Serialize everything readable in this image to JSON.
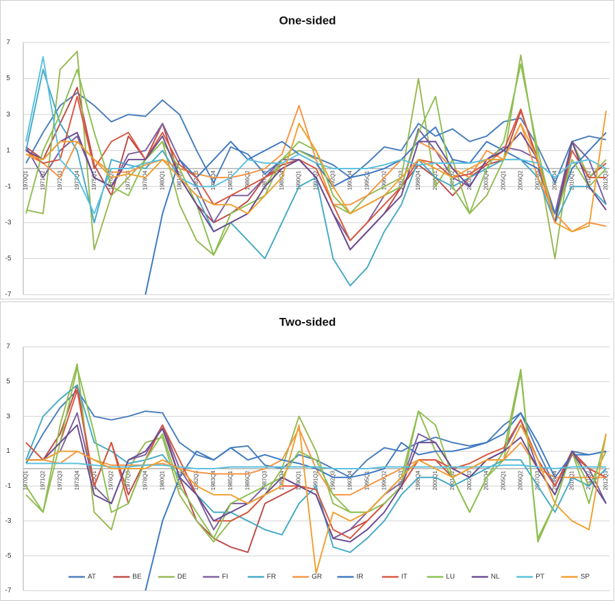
{
  "chart_data": [
    {
      "type": "line",
      "title": "One-sided",
      "grid": true,
      "ylim": [
        -7,
        7
      ],
      "yticks": [
        -7,
        -5,
        -3,
        -1,
        1,
        3,
        5,
        7
      ],
      "categories": [
        "1970Q1",
        "1971Q2",
        "1972Q3",
        "1973Q4",
        "1975Q1",
        "1976Q2",
        "1977Q3",
        "1978Q4",
        "1980Q1",
        "1981Q2",
        "1982Q3",
        "1983Q4",
        "1985Q1",
        "1986Q2",
        "1987Q3",
        "1988Q4",
        "1990Q1",
        "1991Q2",
        "1992Q3",
        "1993Q4",
        "1995Q1",
        "1996Q2",
        "1997Q3",
        "1998Q4",
        "2000Q1",
        "2001Q2",
        "2002Q3",
        "2003Q4",
        "2005Q1",
        "2006Q2",
        "2007Q3",
        "2008Q4",
        "2010Q1",
        "2011Q2",
        "2012Q3"
      ],
      "series": [
        {
          "color": "#4a7ebb",
          "values": [
            0.3,
            2.0,
            3.5,
            4.2,
            3.5,
            2.6,
            3.0,
            2.9,
            3.8,
            3.0,
            1.0,
            -0.8,
            1.2,
            0.8,
            -0.3,
            0.5,
            1.0,
            0.6,
            0.2,
            -0.5,
            0.3,
            1.2,
            1.0,
            2.5,
            1.8,
            2.2,
            1.5,
            1.8,
            2.6,
            2.8,
            1.2,
            -0.8,
            1.5,
            1.8,
            1.6
          ]
        },
        {
          "color": "#be4b48",
          "values": [
            1.2,
            0.5,
            2.5,
            4.5,
            0.2,
            -1.5,
            1.8,
            0.5,
            2.5,
            -0.5,
            -2.0,
            -3.0,
            -2.5,
            -1.8,
            -0.5,
            0.2,
            0.5,
            -0.5,
            -2.5,
            -4.5,
            -3.5,
            -2.5,
            -1.0,
            0.2,
            -0.5,
            -1.5,
            -0.5,
            0.2,
            0.5,
            3.2,
            0.5,
            -3.0,
            1.5,
            -0.5,
            0.3
          ]
        },
        {
          "color": "#98b954",
          "values": [
            -2.3,
            -2.5,
            5.5,
            6.5,
            -4.5,
            -1.5,
            -0.5,
            0.5,
            1.5,
            -2.0,
            -4.0,
            -4.8,
            -3.0,
            -2.5,
            -1.0,
            0.5,
            1.0,
            0.5,
            -2.0,
            -2.5,
            -1.5,
            -1.0,
            -0.5,
            5.0,
            -1.0,
            0.5,
            -2.5,
            -1.5,
            0.5,
            6.3,
            0.5,
            -5.0,
            1.5,
            -0.5,
            0.5
          ]
        },
        {
          "color": "#7d60a0",
          "values": [
            1.2,
            -0.5,
            1.0,
            1.8,
            -0.5,
            -1.0,
            0.8,
            1.0,
            2.5,
            0.5,
            -1.0,
            -3.0,
            -1.5,
            -1.5,
            -0.5,
            0.5,
            0.5,
            -0.5,
            -2.5,
            -4.0,
            -3.0,
            -1.5,
            -1.0,
            2.2,
            1.0,
            -0.5,
            -1.0,
            0.5,
            1.2,
            1.0,
            0.5,
            -2.5,
            1.5,
            0.5,
            -2.0
          ]
        },
        {
          "color": "#46aac5",
          "values": [
            1.0,
            5.5,
            2.5,
            1.0,
            -3.0,
            0.5,
            0.2,
            0.0,
            1.0,
            -0.5,
            -1.5,
            -3.5,
            -3.0,
            -4.0,
            -5.0,
            -3.0,
            -1.0,
            -0.5,
            -5.0,
            -6.5,
            -5.5,
            -3.5,
            -2.0,
            0.5,
            -0.5,
            -1.0,
            -0.5,
            0.0,
            0.5,
            0.5,
            -0.5,
            -3.0,
            -1.0,
            -1.0,
            -2.0
          ]
        },
        {
          "color": "#f69544",
          "values": [
            0.8,
            0.3,
            -0.5,
            1.5,
            0.5,
            -0.2,
            -0.2,
            0.2,
            0.5,
            0.0,
            -0.3,
            -0.5,
            -0.5,
            -0.3,
            0.0,
            0.8,
            3.5,
            0.5,
            -2.0,
            -2.0,
            -1.5,
            -0.5,
            0.5,
            1.5,
            1.0,
            0.0,
            -0.5,
            1.0,
            0.5,
            2.5,
            -0.5,
            -2.5,
            -3.5,
            -3.0,
            -3.2
          ]
        },
        {
          "color": "#3c78c3",
          "values": [
            null,
            null,
            null,
            null,
            null,
            null,
            null,
            -7.0,
            -2.5,
            0.5,
            -0.5,
            0.5,
            1.5,
            0.5,
            1.0,
            1.5,
            0.8,
            0.3,
            -1.0,
            -0.5,
            -0.3,
            0.0,
            0.5,
            1.5,
            2.3,
            0.5,
            0.3,
            1.5,
            1.0,
            0.5,
            0.0,
            -2.5,
            0.0,
            1.0,
            2.0
          ]
        },
        {
          "color": "#d8573f",
          "values": [
            1.0,
            0.3,
            0.5,
            4.0,
            0.0,
            1.5,
            2.0,
            0.5,
            2.0,
            0.2,
            -0.5,
            -2.0,
            -1.5,
            -1.0,
            -0.5,
            0.0,
            0.5,
            0.0,
            -2.0,
            -4.0,
            -3.0,
            -2.0,
            -1.0,
            0.5,
            0.3,
            -0.5,
            -0.3,
            0.3,
            1.0,
            3.3,
            0.3,
            -3.0,
            1.0,
            -0.5,
            -0.5
          ]
        },
        {
          "color": "#8cc152",
          "values": [
            -2.5,
            1.0,
            3.0,
            5.5,
            2.0,
            -1.0,
            -1.5,
            0.5,
            1.5,
            0.0,
            -2.0,
            -4.8,
            -2.5,
            -2.0,
            -1.5,
            0.5,
            1.5,
            1.0,
            -1.5,
            -2.5,
            -2.0,
            -1.5,
            -1.0,
            2.0,
            4.0,
            -1.0,
            -2.5,
            0.0,
            1.5,
            5.8,
            1.0,
            -3.0,
            0.5,
            -1.0,
            0.0
          ]
        },
        {
          "color": "#6a4c93",
          "values": [
            1.0,
            0.5,
            1.5,
            2.0,
            -0.5,
            -1.0,
            0.5,
            0.5,
            1.8,
            -0.5,
            -2.0,
            -3.5,
            -3.0,
            -2.5,
            -1.0,
            0.0,
            0.5,
            -0.5,
            -2.5,
            -4.5,
            -3.5,
            -2.5,
            -1.5,
            1.5,
            1.5,
            0.0,
            -1.0,
            0.5,
            1.0,
            2.0,
            0.5,
            -3.0,
            1.5,
            -1.0,
            -2.3
          ]
        },
        {
          "color": "#5bc0de",
          "values": [
            1.5,
            6.2,
            0.5,
            -0.5,
            -2.5,
            0.0,
            0.0,
            0.3,
            0.5,
            -0.5,
            -1.0,
            -1.0,
            -0.5,
            0.5,
            0.3,
            0.3,
            0.8,
            0.3,
            0.0,
            0.0,
            0.0,
            0.2,
            0.5,
            0.2,
            0.3,
            0.3,
            0.3,
            0.5,
            0.5,
            0.5,
            0.3,
            -0.5,
            0.3,
            0.5,
            0.0
          ]
        },
        {
          "color": "#f0a030",
          "values": [
            0.8,
            0.5,
            1.5,
            1.5,
            0.5,
            -0.5,
            -0.3,
            -0.5,
            0.5,
            -0.5,
            -1.5,
            -2.0,
            -2.0,
            -2.5,
            -1.5,
            -0.5,
            2.5,
            1.0,
            -1.0,
            -2.5,
            -2.0,
            -1.5,
            -0.5,
            0.5,
            0.0,
            -0.5,
            0.0,
            0.5,
            0.5,
            2.5,
            0.5,
            -3.0,
            -3.5,
            -3.2,
            3.2
          ]
        }
      ]
    },
    {
      "type": "line",
      "title": "Two-sided",
      "grid": true,
      "legend": "bottom",
      "ylim": [
        -7,
        7
      ],
      "yticks": [
        -7,
        -5,
        -3,
        -1,
        1,
        3,
        5,
        7
      ],
      "categories": [
        "1970Q1",
        "1971Q2",
        "1972Q3",
        "1973Q4",
        "1975Q1",
        "1976Q2",
        "1977Q3",
        "1978Q4",
        "1980Q1",
        "1981Q2",
        "1982Q3",
        "1983Q4",
        "1985Q1",
        "1986Q2",
        "1987Q3",
        "1988Q4",
        "1990Q1",
        "1991Q2",
        "1992Q3",
        "1993Q4",
        "1995Q1",
        "1996Q2",
        "1997Q3",
        "1998Q4",
        "2000Q1",
        "2001Q2",
        "2002Q3",
        "2003Q4",
        "2005Q1",
        "2006Q2",
        "2007Q3",
        "2008Q4",
        "2010Q1",
        "2011Q2",
        "2012Q3"
      ],
      "series": [
        {
          "name": "AT",
          "color": "#4a7ebb",
          "values": [
            0.3,
            2.0,
            3.5,
            4.5,
            3.0,
            2.8,
            3.0,
            3.3,
            3.2,
            1.5,
            0.8,
            0.5,
            1.2,
            1.3,
            0.2,
            0.0,
            0.8,
            0.5,
            0.0,
            -0.5,
            0.5,
            1.2,
            1.0,
            1.5,
            1.8,
            1.5,
            1.3,
            1.5,
            2.5,
            3.2,
            1.0,
            -1.0,
            1.0,
            0.8,
            1.0
          ]
        },
        {
          "name": "BE",
          "color": "#be4b48",
          "values": [
            1.5,
            0.5,
            2.0,
            4.8,
            -1.0,
            1.5,
            -1.5,
            0.5,
            2.5,
            -0.5,
            -3.0,
            -4.0,
            -4.5,
            -4.8,
            -2.0,
            -1.5,
            -1.0,
            -1.5,
            -4.0,
            -3.5,
            -3.0,
            -2.0,
            -1.0,
            0.5,
            0.5,
            -0.5,
            0.0,
            0.5,
            1.0,
            2.8,
            0.5,
            -1.0,
            1.0,
            0.0,
            -0.5
          ]
        },
        {
          "name": "DE",
          "color": "#98b954",
          "values": [
            -1.5,
            -2.5,
            2.5,
            6.0,
            -2.5,
            -3.5,
            0.0,
            1.5,
            1.8,
            -1.5,
            -3.0,
            -4.2,
            -3.0,
            -2.5,
            -1.5,
            0.0,
            3.0,
            1.0,
            -2.0,
            -2.5,
            -2.5,
            -1.5,
            -0.5,
            3.3,
            1.0,
            -0.5,
            -2.5,
            -0.5,
            1.0,
            5.7,
            -4.2,
            -2.0,
            1.0,
            -1.0,
            1.0
          ]
        },
        {
          "name": "FI",
          "color": "#7d60a0",
          "values": [
            0.5,
            0.5,
            1.0,
            3.2,
            -1.0,
            -2.0,
            0.5,
            0.8,
            2.5,
            0.0,
            -1.5,
            -3.5,
            -2.0,
            -2.0,
            -1.0,
            -0.5,
            -1.0,
            -1.5,
            -4.0,
            -3.5,
            -2.5,
            -1.5,
            -0.8,
            2.0,
            1.5,
            0.0,
            -0.5,
            0.5,
            1.0,
            2.8,
            0.0,
            -1.5,
            0.8,
            0.0,
            -2.0
          ]
        },
        {
          "name": "FR",
          "color": "#46aac5",
          "values": [
            0.5,
            3.0,
            4.0,
            4.8,
            1.5,
            1.0,
            0.3,
            0.5,
            0.8,
            -0.5,
            -1.5,
            -2.5,
            -2.5,
            -3.0,
            -3.5,
            -3.8,
            -2.0,
            -1.0,
            -4.5,
            -4.8,
            -4.0,
            -3.0,
            -1.5,
            -0.5,
            -0.5,
            -1.0,
            -0.5,
            0.0,
            0.5,
            0.5,
            -1.0,
            -2.5,
            -0.5,
            -1.0,
            0.0
          ]
        },
        {
          "name": "GR",
          "color": "#f69544",
          "values": [
            0.5,
            0.5,
            0.3,
            1.0,
            0.5,
            0.2,
            0.2,
            0.2,
            0.3,
            0.0,
            -0.2,
            -0.3,
            -0.3,
            -0.3,
            0.0,
            0.5,
            2.3,
            0.0,
            -1.5,
            -1.5,
            -1.0,
            -0.5,
            0.0,
            0.5,
            0.5,
            0.0,
            -0.5,
            0.5,
            0.5,
            1.5,
            0.0,
            -0.5,
            -0.5,
            -0.5,
            -0.5
          ]
        },
        {
          "name": "IR",
          "color": "#3c78c3",
          "values": [
            null,
            null,
            null,
            null,
            null,
            null,
            null,
            -7.0,
            -3.0,
            -0.5,
            1.0,
            0.5,
            1.2,
            0.5,
            0.8,
            0.5,
            0.3,
            0.0,
            -0.5,
            -0.5,
            -0.3,
            0.0,
            1.5,
            0.8,
            1.0,
            1.0,
            1.2,
            1.5,
            2.0,
            3.2,
            1.5,
            -0.5,
            0.8,
            0.8,
            1.0
          ]
        },
        {
          "name": "IT",
          "color": "#d8573f",
          "values": [
            1.5,
            0.5,
            1.5,
            4.5,
            -1.0,
            1.5,
            -2.0,
            0.5,
            2.5,
            0.5,
            -1.5,
            -3.0,
            -3.0,
            -2.5,
            -1.5,
            -1.0,
            -1.0,
            -1.2,
            -3.5,
            -4.0,
            -3.0,
            -2.0,
            -1.0,
            0.5,
            0.5,
            0.0,
            0.3,
            0.8,
            1.2,
            2.8,
            0.5,
            -1.0,
            0.8,
            0.0,
            -0.5
          ]
        },
        {
          "name": "LU",
          "color": "#8cc152",
          "values": [
            -1.0,
            -2.5,
            1.5,
            5.8,
            2.0,
            -2.5,
            -2.0,
            0.5,
            2.0,
            -1.0,
            -2.5,
            -4.0,
            -2.0,
            -1.5,
            -1.0,
            -0.5,
            1.0,
            0.5,
            -1.5,
            -2.5,
            -2.5,
            -2.0,
            -1.0,
            3.3,
            2.5,
            -0.5,
            -2.5,
            -0.5,
            0.5,
            5.5,
            -4.0,
            -2.0,
            1.0,
            -2.0,
            2.0
          ]
        },
        {
          "name": "NL",
          "color": "#6a4c93",
          "values": [
            0.5,
            0.5,
            1.5,
            2.5,
            -1.5,
            -2.0,
            0.5,
            1.0,
            2.3,
            -0.5,
            -1.5,
            -3.0,
            -2.5,
            -2.0,
            -1.5,
            -0.5,
            -1.0,
            -1.5,
            -4.0,
            -4.2,
            -3.5,
            -2.5,
            -1.0,
            1.5,
            1.5,
            0.0,
            -0.5,
            0.5,
            1.0,
            1.8,
            0.0,
            -1.5,
            1.0,
            -0.5,
            -2.0
          ]
        },
        {
          "name": "PT",
          "color": "#5bc0de",
          "values": [
            0.3,
            0.3,
            0.3,
            0.3,
            0.2,
            0.1,
            0.1,
            0.2,
            0.2,
            0.1,
            0.0,
            0.0,
            0.1,
            0.1,
            0.1,
            0.1,
            0.1,
            0.1,
            0.0,
            0.0,
            0.0,
            0.1,
            0.1,
            0.1,
            0.1,
            0.1,
            0.1,
            0.1,
            0.2,
            0.2,
            0.1,
            0.0,
            0.1,
            0.1,
            0.1
          ]
        },
        {
          "name": "SP",
          "color": "#f0a030",
          "values": [
            0.5,
            0.5,
            1.0,
            1.0,
            0.5,
            0.0,
            0.0,
            0.0,
            0.5,
            0.0,
            -1.0,
            -1.5,
            -1.5,
            -2.0,
            -1.5,
            -1.0,
            2.5,
            -6.0,
            -2.5,
            -3.0,
            -2.5,
            -1.5,
            -0.5,
            0.5,
            0.0,
            -0.5,
            0.0,
            0.5,
            0.5,
            2.5,
            0.5,
            -2.0,
            -3.0,
            -3.5,
            2.0
          ]
        }
      ]
    }
  ]
}
